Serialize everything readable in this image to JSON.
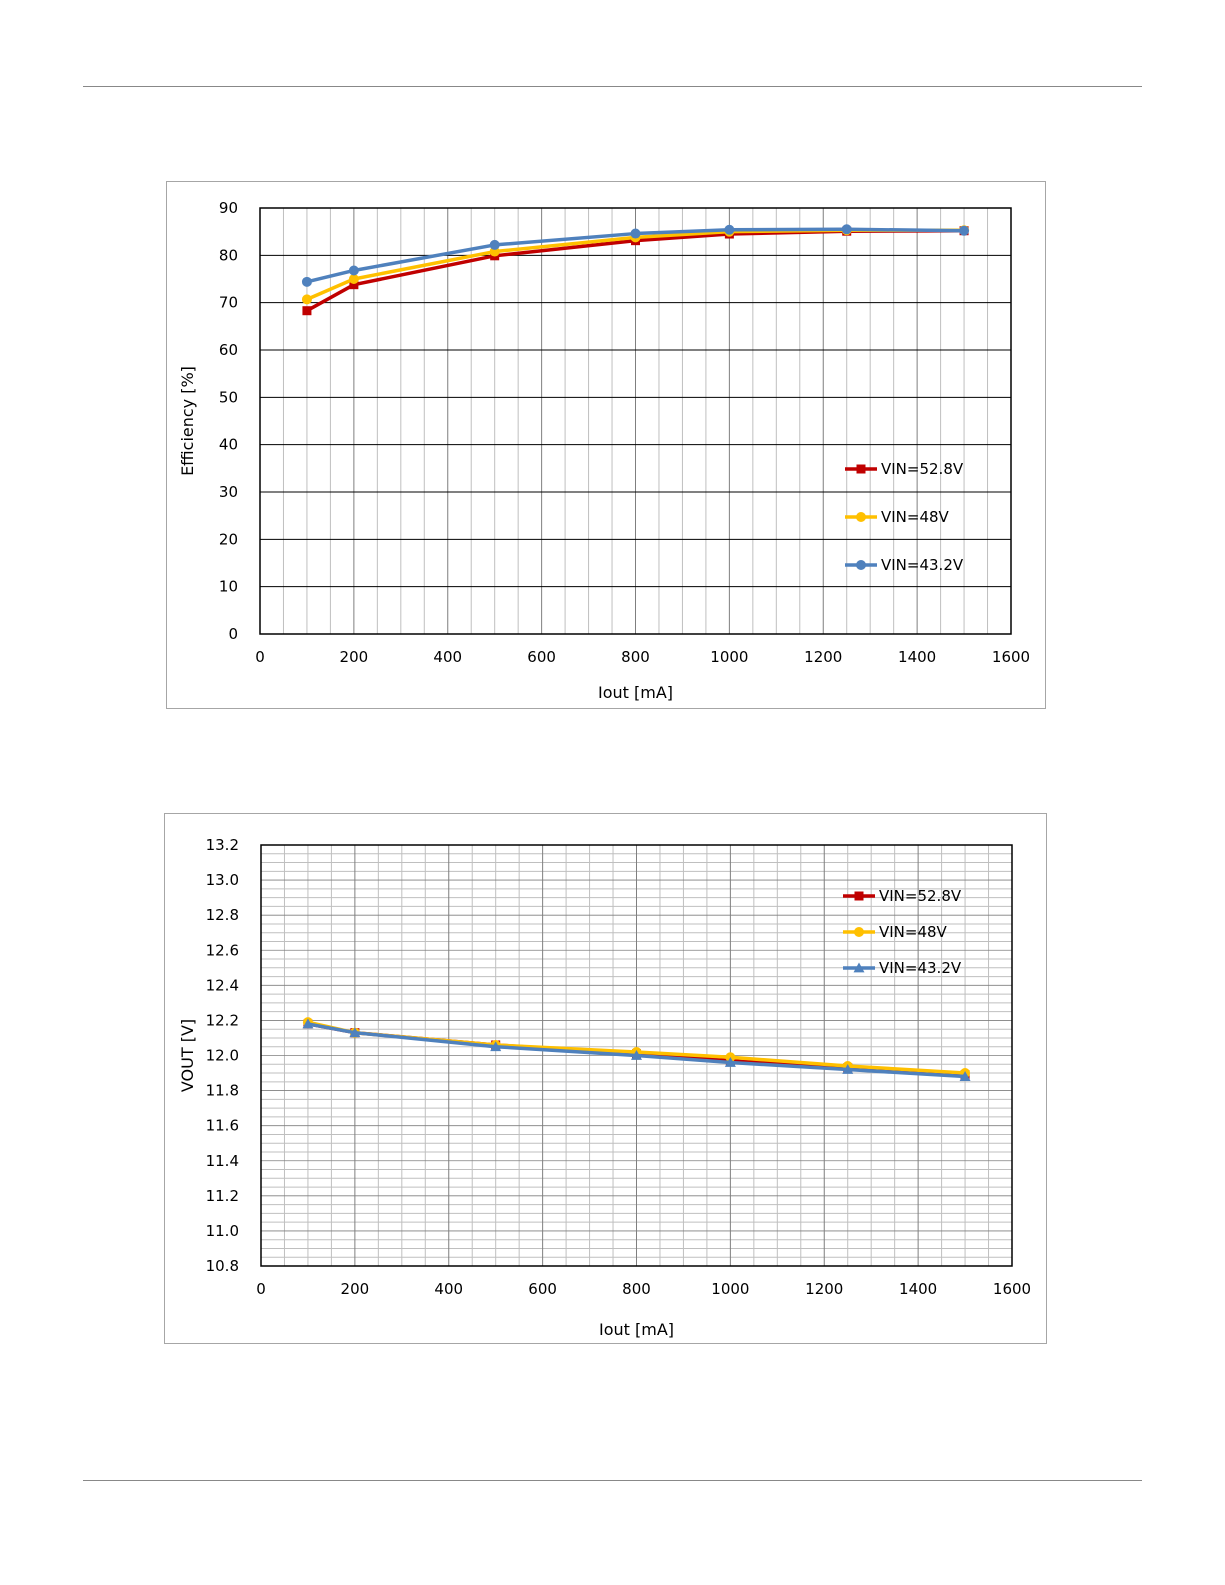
{
  "colors": {
    "vin_52_8": "#c00000",
    "vin_48": "#ffc000",
    "vin_43_2": "#4f81bd",
    "grid_major": "#7f7f7f",
    "grid_minor": "#bfbfbf",
    "axis": "#000000",
    "text": "#000000"
  },
  "chart_data": [
    {
      "type": "line",
      "title": "",
      "xlabel": "Iout [mA]",
      "ylabel": "Efficiency [%]",
      "xlim": [
        0,
        1600
      ],
      "ylim": [
        0,
        90
      ],
      "x_ticks": [
        "0",
        "200",
        "400",
        "600",
        "800",
        "1000",
        "1200",
        "1400",
        "1600"
      ],
      "y_ticks": [
        "0",
        "10",
        "20",
        "30",
        "40",
        "50",
        "60",
        "70",
        "80",
        "90"
      ],
      "grid": "major and minor",
      "legend_position": "right, lower",
      "series": [
        {
          "name": "VIN=52.8V",
          "marker": "square",
          "color_key": "vin_52_8",
          "x": [
            100,
            200,
            500,
            800,
            1000,
            1250,
            1500
          ],
          "y": [
            68.3,
            73.8,
            79.9,
            83.1,
            84.5,
            85.1,
            85.2
          ]
        },
        {
          "name": "VIN=48V",
          "marker": "circle",
          "color_key": "vin_48",
          "x": [
            100,
            200,
            500,
            800,
            1000,
            1250,
            1500
          ],
          "y": [
            70.7,
            75.0,
            80.8,
            83.8,
            85.0,
            85.3,
            85.3
          ]
        },
        {
          "name": "VIN=43.2V",
          "marker": "circle",
          "color_key": "vin_43_2",
          "x": [
            100,
            200,
            500,
            800,
            1000,
            1250,
            1500
          ],
          "y": [
            74.4,
            76.8,
            82.2,
            84.6,
            85.4,
            85.5,
            85.2
          ]
        }
      ]
    },
    {
      "type": "line",
      "title": "",
      "xlabel": "Iout [mA]",
      "ylabel": "VOUT [V]",
      "xlim": [
        0,
        1600
      ],
      "ylim": [
        10.8,
        13.2
      ],
      "x_ticks": [
        "0",
        "200",
        "400",
        "600",
        "800",
        "1000",
        "1200",
        "1400",
        "1600"
      ],
      "y_ticks": [
        "10.8",
        "11.0",
        "11.2",
        "11.4",
        "11.6",
        "11.8",
        "12.0",
        "12.2",
        "12.4",
        "12.6",
        "12.8",
        "13.0",
        "13.2"
      ],
      "grid": "major and minor",
      "legend_position": "top-right",
      "series": [
        {
          "name": "VIN=52.8V",
          "marker": "square",
          "color_key": "vin_52_8",
          "x": [
            100,
            200,
            500,
            800,
            1000,
            1250,
            1500
          ],
          "y": [
            12.18,
            12.13,
            12.06,
            12.01,
            11.97,
            11.93,
            11.89
          ]
        },
        {
          "name": "VIN=48V",
          "marker": "circle",
          "color_key": "vin_48",
          "x": [
            100,
            200,
            500,
            800,
            1000,
            1250,
            1500
          ],
          "y": [
            12.19,
            12.13,
            12.06,
            12.02,
            11.99,
            11.94,
            11.9
          ]
        },
        {
          "name": "VIN=43.2V",
          "marker": "triangle",
          "color_key": "vin_43_2",
          "x": [
            100,
            200,
            500,
            800,
            1000,
            1250,
            1500
          ],
          "y": [
            12.18,
            12.13,
            12.05,
            12.0,
            11.96,
            11.92,
            11.88
          ]
        }
      ]
    }
  ]
}
